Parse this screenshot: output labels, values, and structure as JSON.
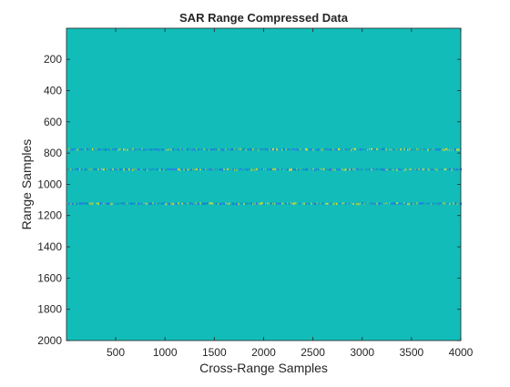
{
  "chart_data": {
    "type": "heatmap",
    "title": "SAR Range Compressed Data",
    "xlabel": "Cross-Range Samples",
    "ylabel": "Range Samples",
    "xlim": [
      1,
      4000
    ],
    "ylim": [
      1,
      2000
    ],
    "y_reversed": true,
    "xticks": [
      500,
      1000,
      1500,
      2000,
      2500,
      3000,
      3500,
      4000
    ],
    "yticks": [
      200,
      400,
      600,
      800,
      1000,
      1200,
      1400,
      1600,
      1800,
      2000
    ],
    "background_color": "#12bdb9",
    "grid": false,
    "bands": [
      {
        "range": 777,
        "x_start": 1,
        "x_end": 4000
      },
      {
        "range": 905,
        "x_start": 1,
        "x_end": 4000
      },
      {
        "range": 1123,
        "x_start": 1,
        "x_end": 4000
      }
    ],
    "band_colors": [
      "#0a7fd6",
      "#2f6cf0",
      "#9fd94c",
      "#e9e21d",
      "#1aa9b8"
    ]
  }
}
